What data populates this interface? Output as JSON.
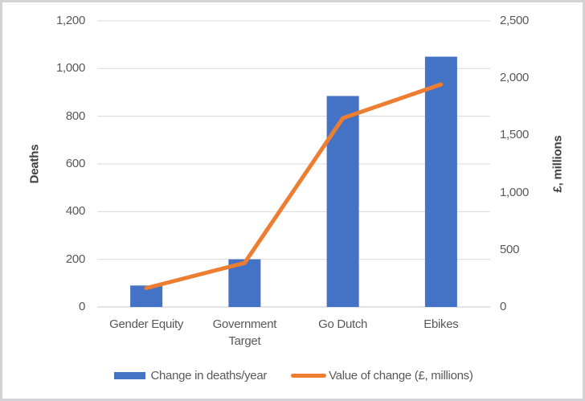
{
  "chart_data": {
    "type": "combo",
    "title": "",
    "categories": [
      "Gender Equity",
      "Government Target",
      "Go Dutch",
      "Ebikes"
    ],
    "series": [
      {
        "name": "Change in deaths/year",
        "type": "bar",
        "axis": "left",
        "color": "#4472C4",
        "values": [
          90,
          200,
          885,
          1050
        ]
      },
      {
        "name": "Value of change (£, millions)",
        "type": "line",
        "axis": "right",
        "color": "#ED7D31",
        "values": [
          165,
          385,
          1650,
          1945
        ]
      }
    ],
    "left_axis": {
      "label": "Deaths",
      "min": 0,
      "max": 1200,
      "step": 200,
      "ticks": [
        "0",
        "200",
        "400",
        "600",
        "800",
        "1,000",
        "1,200"
      ]
    },
    "right_axis": {
      "label": "£, millions",
      "min": 0,
      "max": 2500,
      "step": 500,
      "ticks": [
        "0",
        "500",
        "1,000",
        "1,500",
        "2,000",
        "2,500"
      ]
    },
    "grid": true,
    "legend_position": "bottom"
  },
  "colors": {
    "grid_line": "#D9D9D9",
    "axis_line": "#C8C8C8",
    "tick_text": "#595959",
    "title_text": "#404040",
    "frame_border": "#D4D4D6",
    "background": "#FFFFFF"
  }
}
